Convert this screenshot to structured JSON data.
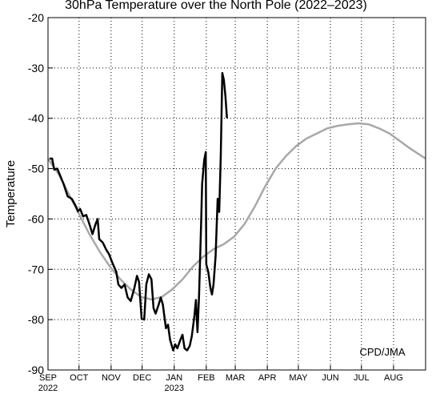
{
  "chart_data": {
    "type": "line",
    "title": "30hPa Temperature over the North Pole (2022–2023)",
    "y_label": "Temperature",
    "annotation": "CPD/JMA",
    "xlim": [
      0,
      365
    ],
    "ylim": [
      -90,
      -20
    ],
    "yticks": [
      -90,
      -80,
      -70,
      -60,
      -50,
      -40,
      -30,
      -20
    ],
    "xticks": [
      {
        "value": 0,
        "label": "SEP"
      },
      {
        "value": 30,
        "label": "OCT"
      },
      {
        "value": 61,
        "label": "NOV"
      },
      {
        "value": 91,
        "label": "DEC"
      },
      {
        "value": 122,
        "label": "JAN"
      },
      {
        "value": 153,
        "label": "FEB"
      },
      {
        "value": 181,
        "label": "MAR"
      },
      {
        "value": 212,
        "label": "APR"
      },
      {
        "value": 242,
        "label": "MAY"
      },
      {
        "value": 273,
        "label": "JUN"
      },
      {
        "value": 303,
        "label": "JUL"
      },
      {
        "value": 334,
        "label": "AUG"
      }
    ],
    "year_labels": [
      {
        "value": 0,
        "label": "2022"
      },
      {
        "value": 122,
        "label": "2023"
      }
    ],
    "grid": true,
    "series": [
      {
        "color": "#a8a8a8",
        "width": 2.5,
        "x": [
          0,
          10,
          20,
          30,
          40,
          50,
          60,
          70,
          80,
          90,
          100,
          110,
          120,
          130,
          140,
          150,
          160,
          170,
          180,
          190,
          200,
          210,
          220,
          230,
          240,
          250,
          260,
          270,
          280,
          290,
          300,
          310,
          320,
          330,
          340,
          350,
          365
        ],
        "values": [
          -48,
          -51,
          -55,
          -59,
          -63,
          -66.5,
          -69.5,
          -72,
          -74,
          -75.5,
          -76,
          -75.5,
          -74,
          -72,
          -69.5,
          -67.5,
          -66,
          -65,
          -63.5,
          -61,
          -57.5,
          -53.5,
          -50,
          -47.5,
          -45.5,
          -44,
          -43,
          -42,
          -41.5,
          -41.2,
          -41,
          -41.2,
          -42,
          -43,
          -44.5,
          -46,
          -48
        ]
      },
      {
        "color": "#000000",
        "width": 2.5,
        "x": [
          1.5,
          4,
          6,
          9,
          15,
          19,
          23,
          27,
          29,
          31,
          34,
          37,
          40,
          43,
          46,
          48,
          49.5,
          53,
          56,
          59,
          62,
          66,
          68,
          71,
          74,
          77,
          80,
          83.5,
          86,
          88,
          90.5,
          93,
          95,
          97.5,
          100,
          102,
          104,
          107,
          109,
          111,
          114,
          116,
          118,
          121,
          123,
          125,
          128,
          130,
          132,
          134.5,
          137,
          139,
          141.5,
          143,
          144.5,
          146,
          148,
          149,
          151,
          152.5,
          153,
          155,
          157,
          158.5,
          160,
          162,
          164,
          165.5,
          167,
          168.5,
          170,
          171.5,
          173
        ],
        "values": [
          -48,
          -48,
          -50.2,
          -50,
          -53,
          -55.5,
          -56,
          -57.5,
          -58.5,
          -58,
          -59.5,
          -59.2,
          -61,
          -63,
          -61,
          -60,
          -64,
          -64.7,
          -66,
          -67,
          -68.6,
          -70.5,
          -73,
          -73.7,
          -73,
          -75.6,
          -76.3,
          -73.7,
          -71.3,
          -72.5,
          -79.8,
          -80,
          -73,
          -71,
          -72,
          -77.7,
          -78.8,
          -77,
          -75.6,
          -77,
          -81.7,
          -81,
          -84,
          -86.1,
          -84.9,
          -85.7,
          -84,
          -83,
          -85.7,
          -86.1,
          -85.2,
          -83.3,
          -79.3,
          -76.1,
          -82.5,
          -75.3,
          -61,
          -53,
          -48.3,
          -46.7,
          -69,
          -70.6,
          -73.7,
          -75,
          -73,
          -67.4,
          -56,
          -58.6,
          -47.5,
          -31,
          -32.4,
          -35.6,
          -40
        ]
      }
    ]
  }
}
